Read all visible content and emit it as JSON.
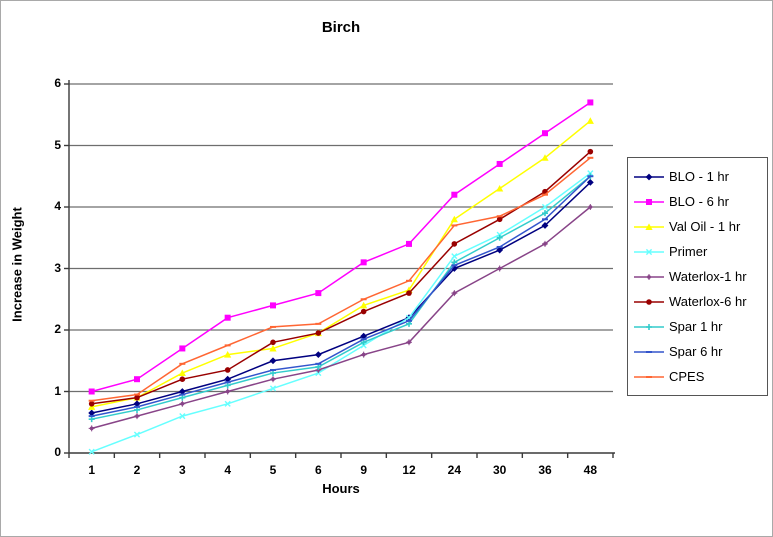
{
  "chart_data": {
    "type": "line",
    "title": "Birch",
    "xlabel": "Hours",
    "ylabel": "Increase in Weight",
    "categories": [
      "1",
      "2",
      "3",
      "4",
      "5",
      "6",
      "9",
      "12",
      "24",
      "30",
      "36",
      "48"
    ],
    "y_ticks": [
      "0",
      "1",
      "2",
      "3",
      "4",
      "5",
      "6"
    ],
    "ylim": [
      0,
      6
    ],
    "grid": "horizontal",
    "legend_position": "right",
    "plot_bg": "#ffffff",
    "gridline_color": "#6e6e6e",
    "axis_color": "#3a3a3a",
    "series": [
      {
        "name": "BLO - 1 hr",
        "color": "#000080",
        "marker": "diamond",
        "values": [
          0.65,
          0.8,
          1.0,
          1.2,
          1.5,
          1.6,
          1.9,
          2.2,
          3.0,
          3.3,
          3.7,
          4.4
        ]
      },
      {
        "name": "BLO - 6 hr",
        "color": "#ff00ff",
        "marker": "square",
        "values": [
          1.0,
          1.2,
          1.7,
          2.2,
          2.4,
          2.6,
          3.1,
          3.4,
          4.2,
          4.7,
          5.2,
          5.7
        ]
      },
      {
        "name": "Val Oil - 1 hr",
        "color": "#ffff00",
        "marker": "triangle",
        "values": [
          0.75,
          0.9,
          1.3,
          1.6,
          1.7,
          1.95,
          2.4,
          2.65,
          3.8,
          4.3,
          4.8,
          5.4
        ]
      },
      {
        "name": "Primer",
        "color": "#66ffff",
        "marker": "x",
        "values": [
          0.02,
          0.3,
          0.6,
          0.8,
          1.05,
          1.3,
          1.75,
          2.2,
          3.2,
          3.55,
          4.0,
          4.55
        ]
      },
      {
        "name": "Waterlox-1 hr",
        "color": "#884488",
        "marker": "star",
        "values": [
          0.4,
          0.6,
          0.8,
          1.0,
          1.2,
          1.35,
          1.6,
          1.8,
          2.6,
          3.0,
          3.4,
          4.0
        ]
      },
      {
        "name": "Waterlox-6 hr",
        "color": "#990000",
        "marker": "circle",
        "values": [
          0.8,
          0.9,
          1.2,
          1.35,
          1.8,
          1.95,
          2.3,
          2.6,
          3.4,
          3.8,
          4.25,
          4.9
        ]
      },
      {
        "name": "Spar 1 hr",
        "color": "#33cccc",
        "marker": "plus",
        "values": [
          0.55,
          0.7,
          0.9,
          1.1,
          1.3,
          1.4,
          1.8,
          2.1,
          3.1,
          3.5,
          3.9,
          4.5
        ]
      },
      {
        "name": "Spar 6 hr",
        "color": "#3355cc",
        "marker": "dash",
        "values": [
          0.6,
          0.75,
          0.95,
          1.15,
          1.35,
          1.45,
          1.85,
          2.15,
          3.05,
          3.35,
          3.8,
          4.5
        ]
      },
      {
        "name": "CPES",
        "color": "#ff6633",
        "marker": "dash",
        "values": [
          0.85,
          0.95,
          1.45,
          1.75,
          2.05,
          2.1,
          2.5,
          2.8,
          3.7,
          3.85,
          4.2,
          4.8
        ]
      }
    ]
  }
}
